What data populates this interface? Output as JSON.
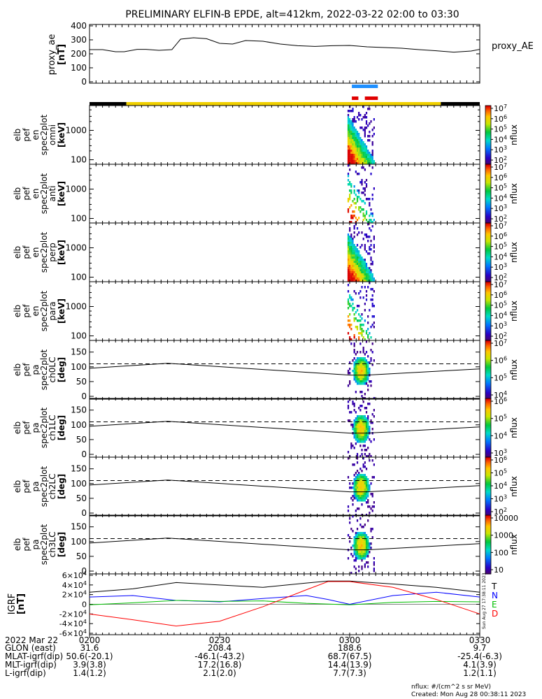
{
  "title": "PRELIMINARY ELFIN-B EPDE, alt=412km, 2022-03-22 02:00 to 03:30",
  "colors": {
    "ae_line": "#000000",
    "bar_blue": "#1e8fff",
    "bar_red": "#e00000",
    "bar_yellow": "#f0d000",
    "bar_black": "#000000",
    "grf_T": "#000000",
    "grf_N": "#0000ff",
    "grf_E": "#00c000",
    "grf_D": "#ff0000"
  },
  "chart_data": [
    {
      "type": "line",
      "name": "proxy_ae",
      "ylabel": "proxy_ae",
      "unit": "[nT]",
      "legend": "proxy_AE",
      "ylim": [
        0,
        400
      ],
      "yticks": [
        "400",
        "300",
        "200",
        "100",
        "0"
      ],
      "x": [
        0,
        3,
        6,
        8,
        11,
        13,
        16,
        19,
        21,
        24,
        27,
        30,
        33,
        36,
        40,
        44,
        48,
        52,
        56,
        60,
        64,
        68,
        72,
        76,
        80,
        84,
        88,
        90
      ],
      "y": [
        230,
        230,
        215,
        215,
        232,
        232,
        225,
        230,
        305,
        315,
        308,
        275,
        270,
        295,
        290,
        270,
        258,
        253,
        258,
        260,
        250,
        245,
        240,
        230,
        222,
        212,
        220,
        232
      ]
    },
    {
      "type": "heatmap",
      "name": "spec2plot_omni",
      "ylabels": [
        "elb",
        "pef",
        "en",
        "spec2plot",
        "omni",
        "[keV]"
      ],
      "yticks": [
        "1000",
        "100"
      ],
      "colorbar": {
        "label": "nflux",
        "ticks": [
          "10^7",
          "10^6",
          "10^5",
          "10^4",
          "10^3",
          "10^2"
        ]
      }
    },
    {
      "type": "heatmap",
      "name": "spec2plot_anti",
      "ylabels": [
        "elb",
        "pef",
        "en",
        "spec2plot",
        "anti",
        "[keV]"
      ],
      "yticks": [
        "1000",
        "100"
      ],
      "colorbar": {
        "label": "nflux",
        "ticks": [
          "10^7",
          "10^6",
          "10^5",
          "10^4",
          "10^3",
          "10^2"
        ]
      }
    },
    {
      "type": "heatmap",
      "name": "spec2plot_perp",
      "ylabels": [
        "elb",
        "pef",
        "en",
        "spec2plot",
        "perp",
        "[keV]"
      ],
      "yticks": [
        "1000",
        "100"
      ],
      "colorbar": {
        "label": "nflux",
        "ticks": [
          "10^7",
          "10^6",
          "10^5",
          "10^4",
          "10^3",
          "10^2"
        ]
      }
    },
    {
      "type": "heatmap",
      "name": "spec2plot_para",
      "ylabels": [
        "elb",
        "pef",
        "en",
        "spec2plot",
        "para",
        "[keV]"
      ],
      "yticks": [
        "1000",
        "100"
      ],
      "colorbar": {
        "label": "nflux",
        "ticks": [
          "10^7",
          "10^6",
          "10^5",
          "10^4",
          "10^3",
          "10^2"
        ]
      }
    },
    {
      "type": "heatmap",
      "name": "spec2plot_ch0LC",
      "ylabels": [
        "elb",
        "pef",
        "pa",
        "spec2plot",
        "ch0LC",
        "[deg]"
      ],
      "yticks": [
        "150",
        "100",
        "50",
        "0"
      ],
      "colorbar": {
        "label": "nflux",
        "ticks": [
          "10^7",
          "10^6",
          "10^5",
          "10^4"
        ]
      }
    },
    {
      "type": "heatmap",
      "name": "spec2plot_ch1LC",
      "ylabels": [
        "elb",
        "pef",
        "pa",
        "spec2plot",
        "ch1LC",
        "[deg]"
      ],
      "yticks": [
        "150",
        "100",
        "50",
        "0"
      ],
      "colorbar": {
        "label": "nflux",
        "ticks": [
          "10^6",
          "10^5",
          "10^4",
          "10^3"
        ]
      }
    },
    {
      "type": "heatmap",
      "name": "spec2plot_ch2LC",
      "ylabels": [
        "elb",
        "pef",
        "pa",
        "spec2plot",
        "ch2LC",
        "[deg]"
      ],
      "yticks": [
        "150",
        "100",
        "50",
        "0"
      ],
      "colorbar": {
        "label": "nflux",
        "ticks": [
          "10^6",
          "10^5",
          "10^4",
          "10^3",
          "10^2"
        ]
      }
    },
    {
      "type": "heatmap",
      "name": "spec2plot_ch3LC",
      "ylabels": [
        "elb",
        "pef",
        "pa",
        "spec2plot",
        "ch3LC",
        "[deg]"
      ],
      "yticks": [
        "150",
        "100",
        "50",
        "0"
      ],
      "colorbar": {
        "label": "nflux",
        "ticks": [
          "10000",
          "1000",
          "100",
          "10"
        ]
      }
    },
    {
      "type": "line",
      "name": "IGRF",
      "ylabel": "IGRF",
      "unit": "[nT]",
      "ylim": [
        -60000,
        60000
      ],
      "yticks": [
        "6×10^4",
        "4×10^4",
        "2×10^4",
        "0",
        "-2×10^4",
        "-4×10^4",
        "-6×10^4"
      ],
      "series": [
        {
          "name": "T",
          "x": [
            0,
            10,
            20,
            30,
            40,
            50,
            55,
            60,
            70,
            80,
            90
          ],
          "y": [
            25000,
            32000,
            45000,
            40000,
            35000,
            44000,
            48000,
            48000,
            42000,
            35000,
            25000
          ]
        },
        {
          "name": "N",
          "x": [
            0,
            10,
            20,
            30,
            40,
            50,
            55,
            60,
            70,
            80,
            90
          ],
          "y": [
            15000,
            18000,
            8000,
            5000,
            12000,
            18000,
            10000,
            0,
            18000,
            25000,
            15000
          ]
        },
        {
          "name": "E",
          "x": [
            0,
            10,
            20,
            30,
            40,
            50,
            60,
            70,
            80,
            90
          ],
          "y": [
            -1000,
            3000,
            8000,
            6000,
            7000,
            2000,
            -1000,
            4000,
            6000,
            5000
          ]
        },
        {
          "name": "D",
          "x": [
            0,
            10,
            20,
            30,
            40,
            50,
            55,
            60,
            70,
            80,
            90
          ],
          "y": [
            -20000,
            -32000,
            -45000,
            -35000,
            -5000,
            30000,
            47000,
            47000,
            35000,
            10000,
            -20000
          ]
        }
      ],
      "side_text": "Sun Aug 27  17:38:11 2023"
    }
  ],
  "overview_bars": {
    "blue": [
      [
        60.5,
        66.5
      ]
    ],
    "red": [
      [
        60.5,
        62.0
      ],
      [
        63.5,
        66.5
      ]
    ],
    "black": [
      [
        0,
        8.5
      ],
      [
        81,
        90
      ]
    ],
    "yellow": [
      [
        8.5,
        81
      ]
    ]
  },
  "spectra": {
    "burst_x": [
      59.5,
      65.5
    ],
    "energy_panels": [
      "omni",
      "anti",
      "perp",
      "para"
    ],
    "pa_panels": [
      "ch0LC",
      "ch1LC",
      "ch2LC",
      "ch3LC"
    ],
    "loss_cone_dashed_deg": 110,
    "lc_curve": {
      "x": [
        0,
        18,
        60,
        64,
        90
      ],
      "y": [
        95,
        112,
        72,
        72,
        93
      ]
    }
  },
  "time_axis": {
    "tick_minutes": [
      0,
      30,
      60,
      90
    ],
    "rows": [
      {
        "label": "2022 Mar 22",
        "values": [
          "0200",
          "0230",
          "0300",
          "0330"
        ]
      },
      {
        "label": "GLON (east)",
        "values": [
          "31.6",
          "208.4",
          "188.6",
          "9.7"
        ]
      },
      {
        "label": "MLAT-igrf(dip)",
        "values": [
          "50.6(-20.1)",
          "-46.1(-43.2)",
          "68.7(67.5)",
          "-25.4(-6.3)"
        ]
      },
      {
        "label": "MLT-igrf(dip)",
        "values": [
          "3.9(3.8)",
          "17.2(16.8)",
          "14.4(13.9)",
          "4.1(3.9)"
        ]
      },
      {
        "label": "L-igrf(dip)",
        "values": [
          "1.4(1.2)",
          "2.1(2.0)",
          "7.7(7.3)",
          "1.2(1.1)"
        ]
      }
    ]
  },
  "footer": {
    "units": "nflux: #/(cm^2 s sr MeV)",
    "created": "Created: Mon Aug 28 00:38:11 2023"
  }
}
